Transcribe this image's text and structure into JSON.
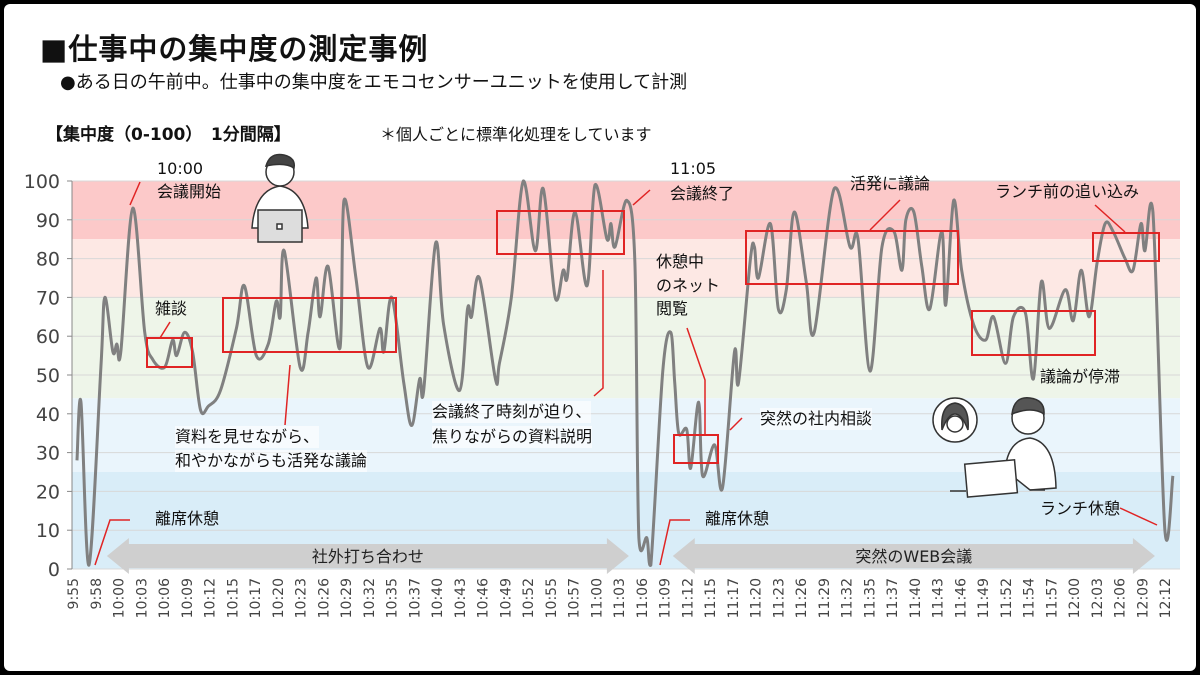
{
  "header": {
    "title": "■仕事中の集中度の測定事例",
    "subtitle": "●ある日の午前中。仕事中の集中度をエモコセンサーユニットを使用して計測",
    "measure_label": "【集中度（0-100）　1分間隔】",
    "note": "＊個人ごとに標準化処理をしています"
  },
  "chart_data": {
    "type": "line",
    "title": "",
    "xlabel": "",
    "ylabel": "",
    "ylim": [
      0,
      100
    ],
    "yticks": [
      0,
      10,
      20,
      30,
      40,
      50,
      60,
      70,
      80,
      90,
      100
    ],
    "grid": true,
    "line_color": "#808080",
    "bands": [
      {
        "from": 85,
        "to": 100,
        "color": "#fcc9c9"
      },
      {
        "from": 70,
        "to": 85,
        "color": "#fde8e4"
      },
      {
        "from": 44,
        "to": 70,
        "color": "#eef5e9"
      },
      {
        "from": 25,
        "to": 44,
        "color": "#eaf5fc"
      },
      {
        "from": 0,
        "to": 25,
        "color": "#d9edf8"
      }
    ],
    "xticks": [
      "9:55",
      "9:58",
      "10:00",
      "10:03",
      "10:06",
      "10:09",
      "10:12",
      "10:15",
      "10:17",
      "10:20",
      "10:23",
      "10:26",
      "10:29",
      "10:32",
      "10:35",
      "10:37",
      "10:40",
      "10:43",
      "10:46",
      "10:49",
      "10:52",
      "10:55",
      "10:57",
      "11:00",
      "11:03",
      "11:06",
      "11:09",
      "11:12",
      "11:15",
      "11:17",
      "11:20",
      "11:23",
      "11:26",
      "11:29",
      "11:32",
      "11:35",
      "11:37",
      "11:40",
      "11:43",
      "11:46",
      "11:49",
      "11:52",
      "11:54",
      "11:57",
      "12:00",
      "12:03",
      "12:06",
      "12:09",
      "12:12"
    ],
    "points": [
      [
        "9:55:30",
        28
      ],
      [
        "9:56:00",
        43
      ],
      [
        "9:57:00",
        1
      ],
      [
        "9:58:30",
        52
      ],
      [
        "9:59:00",
        70
      ],
      [
        "10:00:00",
        56
      ],
      [
        "10:00:30",
        58
      ],
      [
        "10:01:00",
        56
      ],
      [
        "10:02:30",
        93
      ],
      [
        "10:04:00",
        61
      ],
      [
        "10:05:00",
        54
      ],
      [
        "10:06:30",
        52
      ],
      [
        "10:07:30",
        59
      ],
      [
        "10:08:00",
        55
      ],
      [
        "10:09:00",
        61
      ],
      [
        "10:10:00",
        56
      ],
      [
        "10:11:00",
        41
      ],
      [
        "10:12:00",
        42
      ],
      [
        "10:13:30",
        46
      ],
      [
        "10:15:30",
        62
      ],
      [
        "10:16:30",
        73
      ],
      [
        "10:18:00",
        55
      ],
      [
        "10:19:30",
        58
      ],
      [
        "10:20:30",
        69
      ],
      [
        "10:21:00",
        65
      ],
      [
        "10:21:30",
        82
      ],
      [
        "10:23:30",
        52
      ],
      [
        "10:24:30",
        61
      ],
      [
        "10:25:30",
        75
      ],
      [
        "10:26:00",
        65
      ],
      [
        "10:27:00",
        78
      ],
      [
        "10:28:30",
        57
      ],
      [
        "10:29:00",
        95
      ],
      [
        "10:30:30",
        75
      ],
      [
        "10:32:00",
        52
      ],
      [
        "10:33:30",
        62
      ],
      [
        "10:34:00",
        56
      ],
      [
        "10:35:00",
        70
      ],
      [
        "10:36:30",
        48
      ],
      [
        "10:37:30",
        37
      ],
      [
        "10:38:30",
        49
      ],
      [
        "10:39:00",
        46
      ],
      [
        "10:40:30",
        84
      ],
      [
        "10:41:30",
        63
      ],
      [
        "10:43:30",
        46
      ],
      [
        "10:44:30",
        67
      ],
      [
        "10:45:00",
        65
      ],
      [
        "10:46:00",
        75
      ],
      [
        "10:48:00",
        49
      ],
      [
        "10:48:30",
        53
      ],
      [
        "10:50:00",
        70
      ],
      [
        "10:51:30",
        100
      ],
      [
        "10:53:00",
        82
      ],
      [
        "10:54:00",
        98
      ],
      [
        "10:55:30",
        70
      ],
      [
        "10:56:30",
        77
      ],
      [
        "10:57:00",
        75
      ],
      [
        "10:58:00",
        92
      ],
      [
        "10:59:30",
        73
      ],
      [
        "11:00:30",
        99
      ],
      [
        "11:02:00",
        85
      ],
      [
        "11:02:30",
        89
      ],
      [
        "11:03:00",
        83
      ],
      [
        "11:04:30",
        95
      ],
      [
        "11:05:30",
        79
      ],
      [
        "11:06:00",
        8
      ],
      [
        "11:07:00",
        8
      ],
      [
        "11:07:30",
        1
      ],
      [
        "11:09:00",
        51
      ],
      [
        "11:10:00",
        61
      ],
      [
        "11:10:30",
        48
      ],
      [
        "11:11:00",
        35
      ],
      [
        "11:12:00",
        36
      ],
      [
        "11:12:30",
        26
      ],
      [
        "11:13:30",
        43
      ],
      [
        "11:14:00",
        24
      ],
      [
        "11:15:30",
        32
      ],
      [
        "11:16:30",
        21
      ],
      [
        "11:18:00",
        56
      ],
      [
        "11:18:30",
        48
      ],
      [
        "11:20:00",
        80
      ],
      [
        "11:20:30",
        83
      ],
      [
        "11:21:00",
        75
      ],
      [
        "11:22:30",
        89
      ],
      [
        "11:23:30",
        67
      ],
      [
        "11:24:30",
        72
      ],
      [
        "11:25:30",
        92
      ],
      [
        "11:27:00",
        74
      ],
      [
        "11:28:00",
        61
      ],
      [
        "11:30:30",
        98
      ],
      [
        "11:32:30",
        83
      ],
      [
        "11:33:30",
        85
      ],
      [
        "11:35:00",
        51
      ],
      [
        "11:36:30",
        83
      ],
      [
        "11:38:00",
        87
      ],
      [
        "11:39:00",
        77
      ],
      [
        "11:39:30",
        90
      ],
      [
        "11:40:30",
        92
      ],
      [
        "11:41:30",
        78
      ],
      [
        "11:42:30",
        67
      ],
      [
        "11:44:00",
        87
      ],
      [
        "11:44:30",
        68
      ],
      [
        "11:45:30",
        95
      ],
      [
        "11:46:30",
        77
      ],
      [
        "11:48:00",
        63
      ],
      [
        "11:49:30",
        59
      ],
      [
        "11:50:30",
        65
      ],
      [
        "11:52:00",
        53
      ],
      [
        "11:53:00",
        65
      ],
      [
        "11:54:30",
        66
      ],
      [
        "11:55:30",
        49
      ],
      [
        "11:56:30",
        74
      ],
      [
        "11:57:30",
        62
      ],
      [
        "11:59:30",
        72
      ],
      [
        "12:00:30",
        64
      ],
      [
        "12:01:30",
        77
      ],
      [
        "12:02:30",
        65
      ],
      [
        "12:03:30",
        79
      ],
      [
        "12:04:30",
        89
      ],
      [
        "12:05:30",
        87
      ],
      [
        "12:07:00",
        80
      ],
      [
        "12:08:00",
        77
      ],
      [
        "12:09:00",
        89
      ],
      [
        "12:09:30",
        82
      ],
      [
        "12:10:30",
        92
      ],
      [
        "12:12:00",
        10
      ],
      [
        "12:13:00",
        24
      ]
    ],
    "periods": [
      {
        "label": "社外打ち合わせ",
        "from": "9:58",
        "to": "11:05"
      },
      {
        "label": "突然のWEB会議",
        "from": "11:09",
        "to": "12:11"
      }
    ],
    "annotations": {
      "meeting_start_time": "10:00",
      "meeting_start": "会議開始",
      "chat": "雑談",
      "materials_1": "資料を見せながら、",
      "materials_2": "和やかながらも活発な議論",
      "away_1": "離席休憩",
      "rush_1": "会議終了時刻が迫り、",
      "rush_2": "焦りながらの資料説明",
      "meeting_end_time": "11:05",
      "meeting_end": "会議終了",
      "browse_1": "休憩中",
      "browse_2": "のネット",
      "browse_3": "閲覧",
      "consult": "突然の社内相談",
      "away_2": "離席休憩",
      "active": "活発に議論",
      "stagnant": "議論が停滞",
      "pre_lunch": "ランチ前の追い込み",
      "lunch": "ランチ休憩"
    },
    "highlight_color": "#e02424"
  }
}
